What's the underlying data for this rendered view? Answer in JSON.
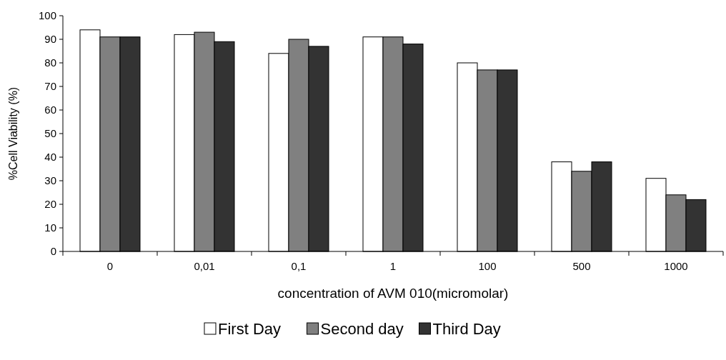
{
  "chart_data": {
    "type": "bar",
    "xlabel": "concentration of AVM 010(micromolar)",
    "ylabel": "%Cell Viability (%)",
    "categories": [
      "0",
      "0,01",
      "0,1",
      "1",
      "100",
      "500",
      "1000"
    ],
    "series": [
      {
        "name": "First Day",
        "color": "#ffffff",
        "values": [
          94,
          92,
          84,
          91,
          80,
          38,
          31
        ]
      },
      {
        "name": "Second day",
        "color": "#808080",
        "values": [
          91,
          93,
          90,
          91,
          77,
          34,
          24
        ]
      },
      {
        "name": "Third Day",
        "color": "#333333",
        "values": [
          91,
          89,
          87,
          88,
          77,
          38,
          22
        ]
      }
    ],
    "ylim": [
      0,
      100
    ],
    "yticks": [
      0,
      10,
      20,
      30,
      40,
      50,
      60,
      70,
      80,
      90,
      100
    ],
    "grid": false,
    "legend": "bottom"
  }
}
